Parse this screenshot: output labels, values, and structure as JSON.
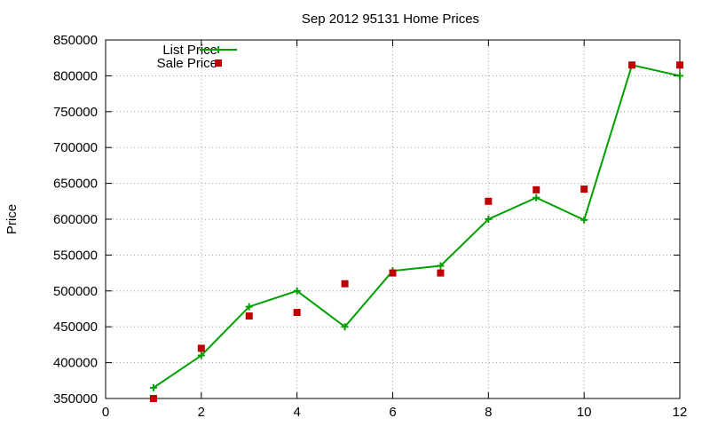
{
  "chart_data": {
    "type": "line",
    "title": "Sep 2012 95131 Home Prices",
    "xlabel": "",
    "ylabel": "Price",
    "xlim": [
      0,
      12
    ],
    "ylim": [
      350000,
      850000
    ],
    "xticks": [
      0,
      2,
      4,
      6,
      8,
      10,
      12
    ],
    "yticks": [
      350000,
      400000,
      450000,
      500000,
      550000,
      600000,
      650000,
      700000,
      750000,
      800000,
      850000
    ],
    "grid": true,
    "legend_position": "top-left",
    "series": [
      {
        "name": "List Price",
        "style": "line-with-plus-markers",
        "color": "#00a000",
        "x": [
          1,
          2,
          3,
          4,
          5,
          6,
          7,
          8,
          9,
          10,
          11,
          12
        ],
        "y": [
          365000,
          410000,
          478000,
          500000,
          450000,
          528000,
          535000,
          600000,
          630000,
          599000,
          815000,
          800000
        ]
      },
      {
        "name": "Sale Price",
        "style": "square-markers",
        "color": "#c00000",
        "x": [
          1,
          2,
          3,
          4,
          5,
          6,
          7,
          8,
          9,
          10,
          11,
          12
        ],
        "y": [
          350000,
          420000,
          465000,
          470000,
          510000,
          525000,
          525000,
          625000,
          641000,
          642000,
          815000,
          815000
        ]
      }
    ]
  }
}
